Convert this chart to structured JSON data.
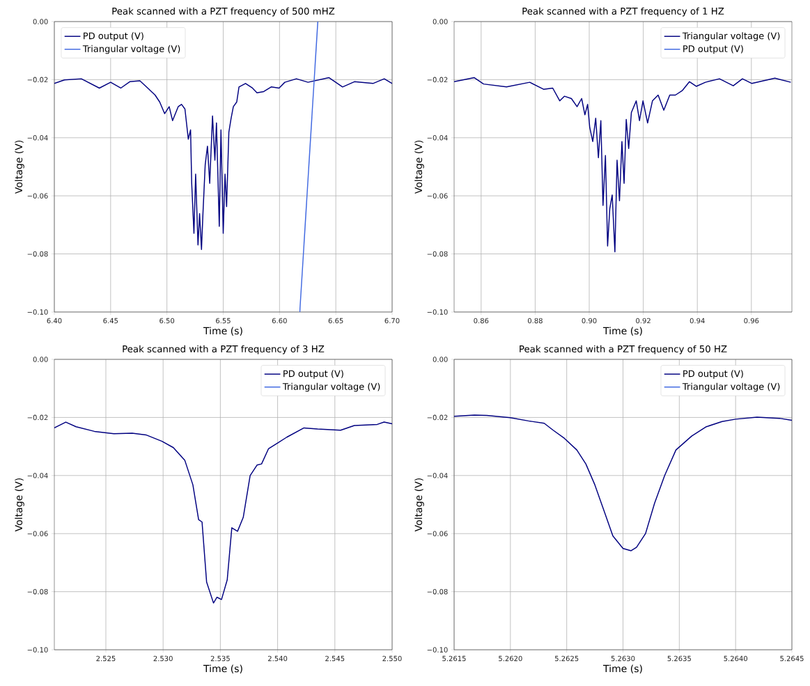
{
  "chart_data": [
    {
      "type": "line",
      "title": "Peak scanned with a PZT frequency of 500 mHZ",
      "xlabel": "Time (s)",
      "ylabel": "Voltage (V)",
      "xlim": [
        6.4,
        6.7
      ],
      "ylim": [
        -0.1,
        0.0
      ],
      "xticks": [
        {
          "value": 6.4,
          "label": "6.40"
        },
        {
          "value": 6.45,
          "label": "6.45"
        },
        {
          "value": 6.5,
          "label": "6.50"
        },
        {
          "value": 6.55,
          "label": "6.55"
        },
        {
          "value": 6.6,
          "label": "6.60"
        },
        {
          "value": 6.65,
          "label": "6.65"
        },
        {
          "value": 6.7,
          "label": "6.70"
        }
      ],
      "yticks": [
        {
          "value": -0.1,
          "label": "−0.10"
        },
        {
          "value": -0.08,
          "label": "−0.08"
        },
        {
          "value": -0.06,
          "label": "−0.06"
        },
        {
          "value": -0.04,
          "label": "−0.04"
        },
        {
          "value": -0.02,
          "label": "−0.02"
        },
        {
          "value": 0.0,
          "label": "0.00"
        }
      ],
      "grid": true,
      "legend": "top left",
      "series": [
        {
          "name": "PD output (V)",
          "color": "#000080",
          "x": [
            6.4,
            6.409,
            6.424,
            6.44,
            6.45,
            6.459,
            6.467,
            6.476,
            6.483,
            6.4895,
            6.4936,
            6.498,
            6.502,
            6.505,
            6.51,
            6.513,
            6.516,
            6.519,
            6.521,
            6.522,
            6.524,
            6.5255,
            6.5276,
            6.529,
            6.5307,
            6.532,
            6.534,
            6.536,
            6.538,
            6.5405,
            6.5426,
            6.544,
            6.5465,
            6.548,
            6.55,
            6.5516,
            6.553,
            6.555,
            6.557,
            6.559,
            6.562,
            6.564,
            6.5698,
            6.576,
            6.58,
            6.586,
            6.5926,
            6.5996,
            6.6047,
            6.615,
            6.6253,
            6.6438,
            6.656,
            6.6665,
            6.683,
            6.693,
            6.7
          ],
          "values": [
            -0.0213,
            -0.0201,
            -0.0197,
            -0.0229,
            -0.0209,
            -0.0229,
            -0.0207,
            -0.0204,
            -0.0229,
            -0.0253,
            -0.0277,
            -0.0317,
            -0.0293,
            -0.0341,
            -0.0293,
            -0.0285,
            -0.0301,
            -0.0405,
            -0.0373,
            -0.0557,
            -0.0729,
            -0.0525,
            -0.0769,
            -0.0661,
            -0.0785,
            -0.0661,
            -0.0493,
            -0.0429,
            -0.0557,
            -0.0325,
            -0.0477,
            -0.0349,
            -0.0705,
            -0.0373,
            -0.0729,
            -0.0525,
            -0.0637,
            -0.0381,
            -0.0333,
            -0.0293,
            -0.0277,
            -0.0225,
            -0.0213,
            -0.0229,
            -0.0245,
            -0.0241,
            -0.0225,
            -0.0229,
            -0.0209,
            -0.0197,
            -0.0209,
            -0.0193,
            -0.0225,
            -0.0207,
            -0.0213,
            -0.0197,
            -0.0213
          ]
        },
        {
          "name": "Triangular voltage (V)",
          "color": "#4169e1",
          "x": [
            6.618,
            6.634
          ],
          "values": [
            -0.1,
            0.0
          ]
        }
      ]
    },
    {
      "type": "line",
      "title": "Peak scanned with a PZT frequency of 1 HZ",
      "xlabel": "Time (s)",
      "ylabel": "Voltage (V)",
      "xlim": [
        0.85,
        0.975
      ],
      "ylim": [
        -0.1,
        0.0
      ],
      "xticks": [
        0.86,
        0.88,
        {
          "value": 0.9,
          "label": "0.90"
        },
        0.92,
        0.94,
        0.96
      ],
      "yticks": [
        {
          "value": -0.1,
          "label": "−0.10"
        },
        {
          "value": -0.08,
          "label": "−0.08"
        },
        {
          "value": -0.06,
          "label": "−0.06"
        },
        {
          "value": -0.04,
          "label": "−0.04"
        },
        {
          "value": -0.02,
          "label": "−0.02"
        },
        {
          "value": 0.0,
          "label": "0.00"
        }
      ],
      "grid": true,
      "legend": "top right",
      "series": [
        {
          "name": "Triangular voltage (V)",
          "color": "#000080",
          "x": [
            0.85,
            0.8574,
            0.8609,
            0.8694,
            0.878,
            0.8831,
            0.8865,
            0.8891,
            0.8908,
            0.8934,
            0.8955,
            0.8972,
            0.8984,
            0.8994,
            0.9002,
            0.9013,
            0.9024,
            0.9034,
            0.9043,
            0.9051,
            0.906,
            0.9068,
            0.9076,
            0.9085,
            0.9095,
            0.9103,
            0.9112,
            0.9121,
            0.9129,
            0.9137,
            0.9146,
            0.9156,
            0.9174,
            0.9186,
            0.9199,
            0.9216,
            0.9234,
            0.9255,
            0.9276,
            0.9298,
            0.9319,
            0.9345,
            0.9371,
            0.9396,
            0.943,
            0.9482,
            0.9533,
            0.9567,
            0.9602,
            0.9687,
            0.9746
          ],
          "values": [
            -0.0207,
            -0.0193,
            -0.0215,
            -0.0225,
            -0.0209,
            -0.0233,
            -0.0229,
            -0.0273,
            -0.0257,
            -0.0265,
            -0.0293,
            -0.0265,
            -0.0321,
            -0.0285,
            -0.0365,
            -0.0413,
            -0.0333,
            -0.0469,
            -0.0341,
            -0.0633,
            -0.0461,
            -0.0773,
            -0.0645,
            -0.0597,
            -0.0793,
            -0.0477,
            -0.0617,
            -0.0413,
            -0.0557,
            -0.0337,
            -0.0437,
            -0.0313,
            -0.0273,
            -0.0341,
            -0.0273,
            -0.0349,
            -0.0273,
            -0.0253,
            -0.0305,
            -0.0253,
            -0.0253,
            -0.0237,
            -0.0207,
            -0.0223,
            -0.0209,
            -0.0197,
            -0.0221,
            -0.0197,
            -0.0213,
            -0.0195,
            -0.0209
          ]
        },
        {
          "name": "PD output (V)",
          "color": "#4169e1"
        }
      ]
    },
    {
      "type": "line",
      "title": "Peak scanned with a PZT frequency of 3 HZ",
      "xlabel": "Time (s)",
      "ylabel": "Voltage (V)",
      "xlim": [
        2.5205,
        2.55
      ],
      "ylim": [
        -0.1,
        0.0
      ],
      "xticks": [
        2.525,
        {
          "value": 2.53,
          "label": "2.530"
        },
        2.535,
        {
          "value": 2.54,
          "label": "2.540"
        },
        2.545,
        {
          "value": 2.55,
          "label": "2.550"
        }
      ],
      "yticks": [
        {
          "value": -0.1,
          "label": "−0.10"
        },
        {
          "value": -0.08,
          "label": "−0.08"
        },
        {
          "value": -0.06,
          "label": "−0.06"
        },
        {
          "value": -0.04,
          "label": "−0.04"
        },
        {
          "value": -0.02,
          "label": "−0.02"
        },
        {
          "value": 0.0,
          "label": "0.00"
        }
      ],
      "grid": true,
      "legend": "top right",
      "series": [
        {
          "name": "PD output (V)",
          "color": "#000080",
          "x": [
            2.5205,
            2.5215,
            2.5224,
            2.524,
            2.5257,
            2.5273,
            2.5285,
            2.5299,
            2.5309,
            2.5319,
            2.5326,
            2.5331,
            2.5334,
            2.5338,
            2.5344,
            2.5347,
            2.5351,
            2.5356,
            2.536,
            2.5365,
            2.537,
            2.5376,
            2.5382,
            2.5386,
            2.5392,
            2.54,
            2.5408,
            2.5423,
            2.5435,
            2.5455,
            2.5467,
            2.5487,
            2.5493,
            2.55
          ],
          "values": [
            -0.0236,
            -0.0216,
            -0.0232,
            -0.0248,
            -0.0256,
            -0.0254,
            -0.026,
            -0.0282,
            -0.0304,
            -0.0348,
            -0.0432,
            -0.0552,
            -0.056,
            -0.0767,
            -0.0839,
            -0.0819,
            -0.0827,
            -0.0759,
            -0.058,
            -0.0592,
            -0.0544,
            -0.04,
            -0.0364,
            -0.036,
            -0.0308,
            -0.0288,
            -0.0268,
            -0.0236,
            -0.024,
            -0.0244,
            -0.0228,
            -0.0224,
            -0.0216,
            -0.0222
          ]
        },
        {
          "name": "Triangular voltage (V)",
          "color": "#4169e1"
        }
      ]
    },
    {
      "type": "line",
      "title": "Peak scanned with a PZT frequency of 50 HZ",
      "xlabel": "Time (s)",
      "ylabel": "Voltage (V)",
      "xlim": [
        5.2615,
        5.2645
      ],
      "ylim": [
        -0.1,
        0.0
      ],
      "xticks": [
        {
          "value": 5.2615,
          "label": "5.2615"
        },
        {
          "value": 5.262,
          "label": "5.2620"
        },
        {
          "value": 5.2625,
          "label": "5.2625"
        },
        {
          "value": 5.263,
          "label": "5.2630"
        },
        {
          "value": 5.2635,
          "label": "5.2635"
        },
        {
          "value": 5.264,
          "label": "5.2640"
        },
        {
          "value": 5.2645,
          "label": "5.2645"
        }
      ],
      "yticks": [
        {
          "value": -0.1,
          "label": "−0.10"
        },
        {
          "value": -0.08,
          "label": "−0.08"
        },
        {
          "value": -0.06,
          "label": "−0.06"
        },
        {
          "value": -0.04,
          "label": "−0.04"
        },
        {
          "value": -0.02,
          "label": "−0.02"
        },
        {
          "value": 0.0,
          "label": "0.00"
        }
      ],
      "grid": true,
      "legend": "top right",
      "series": [
        {
          "name": "PD output (V)",
          "color": "#000080",
          "x": [
            5.2615,
            5.26168,
            5.26179,
            5.262,
            5.26216,
            5.2623,
            5.26238,
            5.26248,
            5.26259,
            5.26267,
            5.26275,
            5.26283,
            5.26291,
            5.263,
            5.26307,
            5.26312,
            5.2632,
            5.26328,
            5.26337,
            5.26347,
            5.26361,
            5.26374,
            5.26388,
            5.264,
            5.26419,
            5.26439,
            5.2645
          ],
          "values": [
            -0.0196,
            -0.0192,
            -0.0193,
            -0.0201,
            -0.0212,
            -0.022,
            -0.0244,
            -0.0272,
            -0.0312,
            -0.036,
            -0.0432,
            -0.052,
            -0.0608,
            -0.0651,
            -0.0659,
            -0.0647,
            -0.06,
            -0.0496,
            -0.04,
            -0.0312,
            -0.0264,
            -0.0232,
            -0.0214,
            -0.0206,
            -0.0199,
            -0.0203,
            -0.021
          ]
        },
        {
          "name": "Triangular voltage (V)",
          "color": "#4169e1"
        }
      ]
    }
  ]
}
